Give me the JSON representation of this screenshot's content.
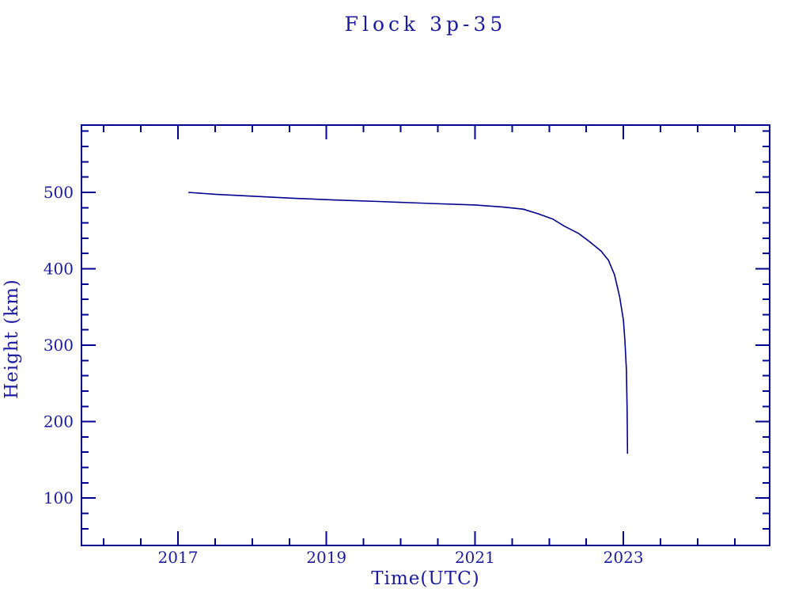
{
  "chart": {
    "title": "Flock 3p-35",
    "xlabel": "Time(UTC)",
    "ylabel": "Height (km)",
    "colors": {
      "line": "#000090",
      "text": "#1b1ba1",
      "background": "#ffffff"
    }
  },
  "chart_data": {
    "type": "line",
    "title": "Flock 3p-35",
    "xlabel": "Time(UTC)",
    "ylabel": "Height (km)",
    "xlim": [
      2015.7,
      2024.97
    ],
    "ylim": [
      38,
      588
    ],
    "x_major_ticks": [
      2017,
      2019,
      2021,
      2023
    ],
    "x_tick_labels": [
      "2017",
      "2019",
      "2021",
      "2023"
    ],
    "x_minor_tick_step": 0.5,
    "x_minor_tick_start": 2016.0,
    "x_minor_tick_end": 2024.5,
    "y_major_ticks": [
      100,
      200,
      300,
      400,
      500
    ],
    "y_tick_labels": [
      "100",
      "200",
      "300",
      "400",
      "500"
    ],
    "y_minor_tick_step": 20,
    "y_minor_tick_start": 60,
    "y_minor_tick_end": 580,
    "grid": false,
    "legend": null,
    "series": [
      {
        "name": "Flock 3p-35 height",
        "x": [
          2017.14,
          2017.5,
          2018.0,
          2018.5,
          2019.1,
          2019.7,
          2020.4,
          2021.0,
          2021.35,
          2021.65,
          2021.85,
          2022.05,
          2022.2,
          2022.4,
          2022.55,
          2022.7,
          2022.8,
          2022.88,
          2022.95,
          2023.0,
          2023.02,
          2023.04,
          2023.05,
          2023.055
        ],
        "y": [
          500,
          497.5,
          495,
          492.5,
          490,
          488,
          485.5,
          483.5,
          481,
          478,
          472,
          465,
          456,
          446,
          435,
          423,
          411,
          392,
          363,
          333,
          306,
          268,
          215,
          158
        ]
      }
    ]
  }
}
